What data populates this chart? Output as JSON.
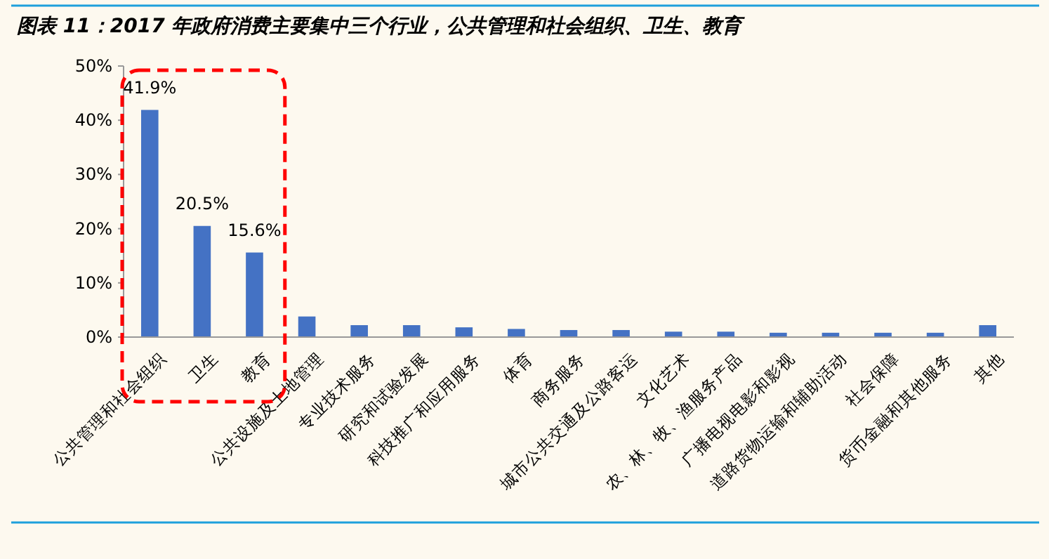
{
  "chart_data": {
    "type": "bar",
    "title": "图表 11：2017 年政府消费主要集中三个行业，公共管理和社会组织、卫生、教育",
    "categories": [
      "公共管理和社会组织",
      "卫生",
      "教育",
      "公共设施及土地管理",
      "专业技术服务",
      "研究和试验发展",
      "科技推广和应用服务",
      "体育",
      "商务服务",
      "城市公共交通及公路客运",
      "文化艺术",
      "农、林、牧、渔服务产品",
      "广播电视电影和影视",
      "道路货物运输和辅助活动",
      "社会保障",
      "货币金融和其他服务",
      "其他"
    ],
    "values": [
      41.9,
      20.5,
      15.6,
      3.8,
      2.2,
      2.2,
      1.8,
      1.5,
      1.3,
      1.3,
      1.0,
      1.0,
      0.8,
      0.8,
      0.8,
      0.8,
      2.2
    ],
    "value_labels": [
      "41.9%",
      "20.5%",
      "15.6%",
      null,
      null,
      null,
      null,
      null,
      null,
      null,
      null,
      null,
      null,
      null,
      null,
      null,
      null
    ],
    "color": "#4472c4",
    "ylim": [
      0,
      50
    ],
    "yticks": [
      {
        "value": 0,
        "label": "0%"
      },
      {
        "value": 10,
        "label": "10%"
      },
      {
        "value": 20,
        "label": "20%"
      },
      {
        "value": 30,
        "label": "30%"
      },
      {
        "value": 40,
        "label": "40%"
      },
      {
        "value": 50,
        "label": "50%"
      }
    ]
  }
}
